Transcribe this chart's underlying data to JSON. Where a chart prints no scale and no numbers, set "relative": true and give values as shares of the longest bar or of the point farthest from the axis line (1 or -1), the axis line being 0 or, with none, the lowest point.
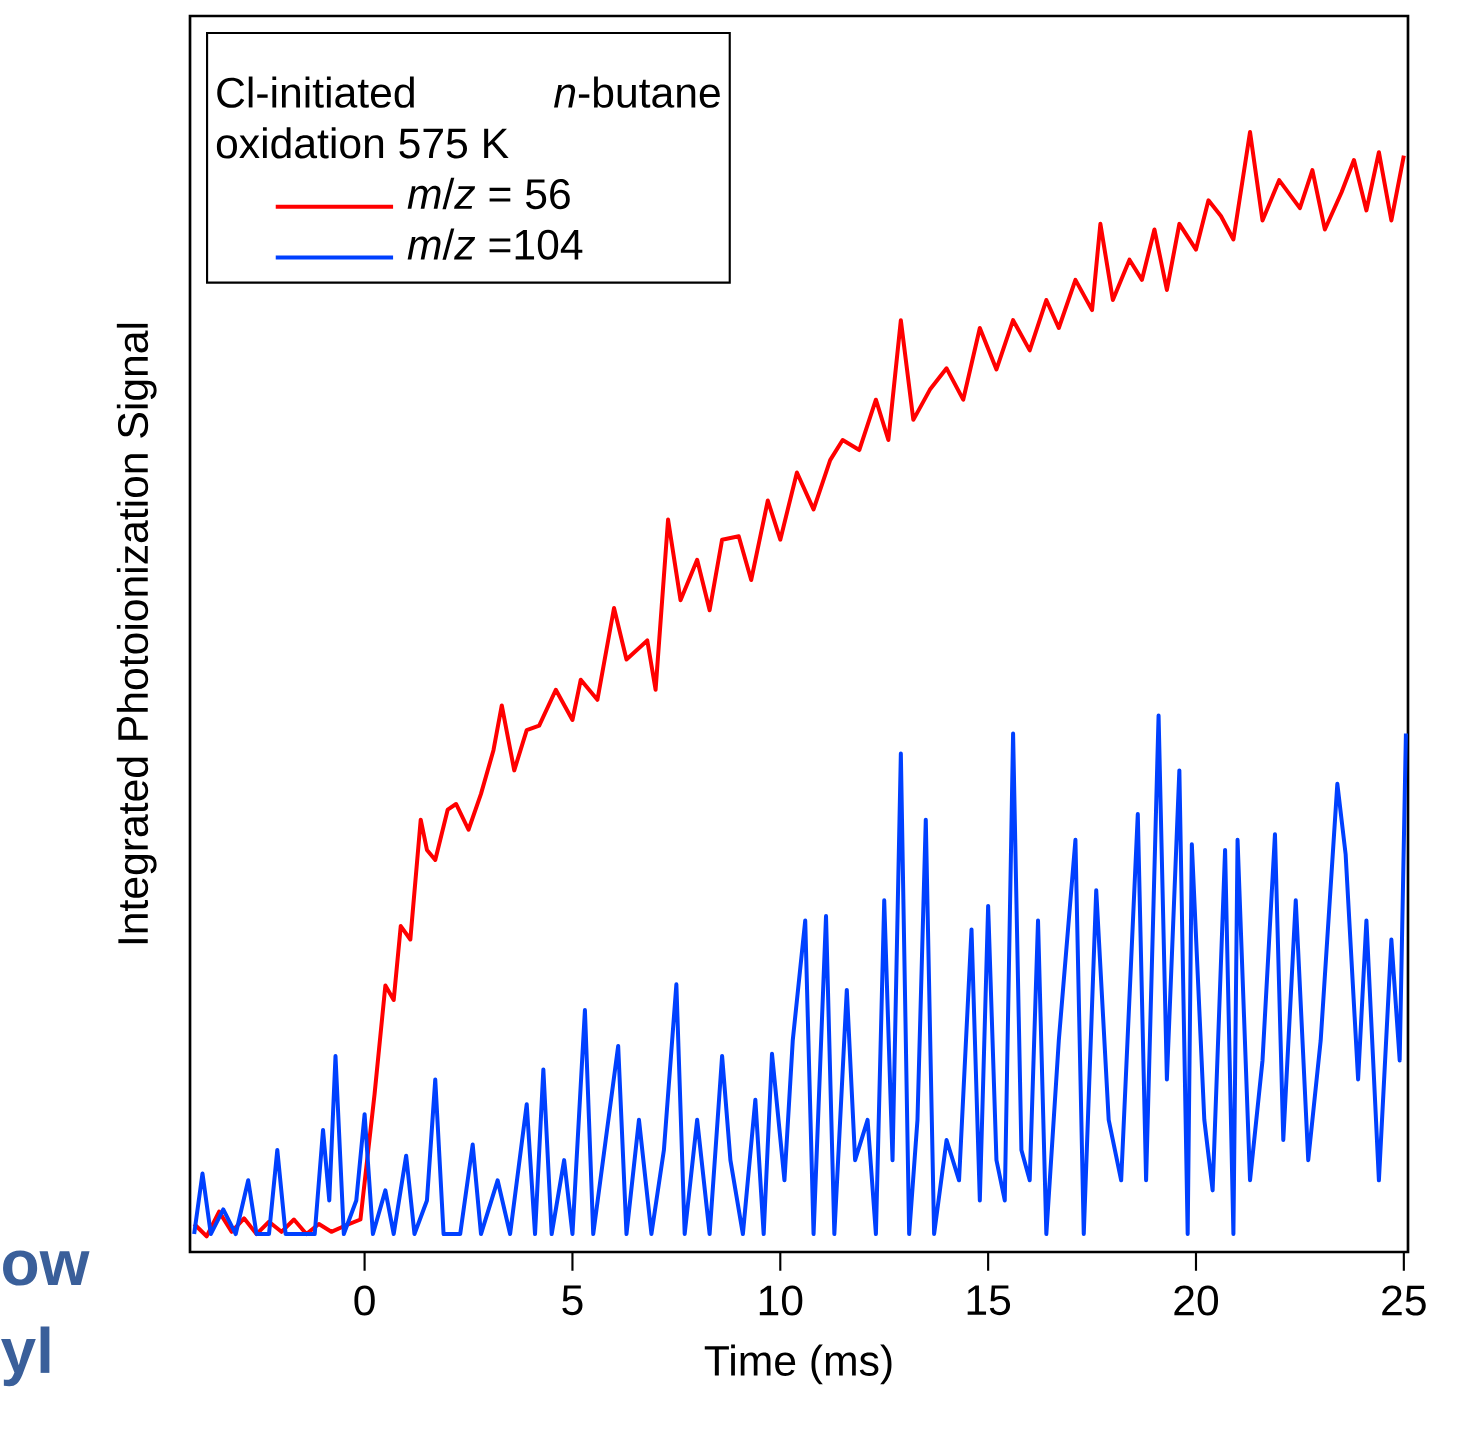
{
  "chart_data": {
    "type": "line",
    "relative": true,
    "xlabel": "Time (ms)",
    "ylabel": "Integrated Photoionization Signal",
    "xlim": [
      -4.2,
      25.1
    ],
    "xticks": [
      0,
      5,
      10,
      15,
      20,
      25
    ],
    "legend": "top left",
    "legend_title": "Cl-initiated *n*-butane oxidation 575 K",
    "grid": false,
    "marker": "none",
    "line_style": "solid",
    "annotations": [
      "ow",
      "yl"
    ],
    "series": [
      {
        "name": "*m*/*z* = 56",
        "color": "#ff0000",
        "x": [
          -4.1,
          -3.8,
          -3.5,
          -3.2,
          -2.9,
          -2.6,
          -2.3,
          -2.0,
          -1.7,
          -1.4,
          -1.1,
          -0.8,
          -0.5,
          -0.1,
          0.24,
          0.5,
          0.7,
          0.87,
          1.1,
          1.35,
          1.5,
          1.7,
          2.0,
          2.2,
          2.5,
          2.8,
          3.1,
          3.3,
          3.6,
          3.9,
          4.2,
          4.6,
          5.0,
          5.2,
          5.6,
          6.0,
          6.3,
          6.8,
          7.0,
          7.3,
          7.6,
          8.0,
          8.3,
          8.6,
          9.0,
          9.3,
          9.7,
          10.0,
          10.4,
          10.8,
          11.2,
          11.5,
          11.9,
          12.3,
          12.6,
          12.9,
          13.2,
          13.6,
          14.0,
          14.4,
          14.8,
          15.2,
          15.6,
          16.0,
          16.4,
          16.7,
          17.1,
          17.5,
          17.7,
          18.0,
          18.4,
          18.7,
          19.0,
          19.3,
          19.6,
          20.0,
          20.3,
          20.6,
          20.9,
          21.3,
          21.6,
          22.0,
          22.5,
          22.8,
          23.1,
          23.5,
          23.8,
          24.1,
          24.4,
          24.7,
          25.0
        ],
        "values": [
          0.025,
          0.014,
          0.036,
          0.018,
          0.03,
          0.016,
          0.027,
          0.018,
          0.029,
          0.016,
          0.025,
          0.018,
          0.023,
          0.029,
          0.141,
          0.238,
          0.225,
          0.291,
          0.279,
          0.386,
          0.359,
          0.35,
          0.395,
          0.4,
          0.377,
          0.409,
          0.448,
          0.488,
          0.43,
          0.466,
          0.47,
          0.502,
          0.475,
          0.511,
          0.493,
          0.575,
          0.529,
          0.546,
          0.502,
          0.654,
          0.582,
          0.618,
          0.573,
          0.636,
          0.639,
          0.6,
          0.671,
          0.636,
          0.696,
          0.663,
          0.707,
          0.725,
          0.716,
          0.761,
          0.725,
          0.832,
          0.743,
          0.77,
          0.789,
          0.761,
          0.825,
          0.788,
          0.832,
          0.805,
          0.85,
          0.825,
          0.868,
          0.841,
          0.918,
          0.85,
          0.886,
          0.868,
          0.913,
          0.859,
          0.918,
          0.895,
          0.939,
          0.925,
          0.904,
          1.0,
          0.921,
          0.957,
          0.932,
          0.966,
          0.913,
          0.946,
          0.975,
          0.93,
          0.982,
          0.921,
          0.979
        ]
      },
      {
        "name": "*m*/*z* =104",
        "color": "#0040ff",
        "x": [
          -4.1,
          -3.9,
          -3.7,
          -3.4,
          -3.1,
          -2.8,
          -2.6,
          -2.3,
          -2.1,
          -1.9,
          -1.5,
          -1.2,
          -1.0,
          -0.85,
          -0.7,
          -0.5,
          -0.2,
          0.0,
          0.2,
          0.5,
          0.7,
          1.0,
          1.2,
          1.5,
          1.7,
          1.9,
          2.3,
          2.6,
          2.8,
          3.2,
          3.5,
          3.9,
          4.1,
          4.3,
          4.5,
          4.8,
          5.0,
          5.3,
          5.5,
          5.8,
          6.1,
          6.3,
          6.6,
          6.9,
          7.2,
          7.5,
          7.7,
          8.0,
          8.3,
          8.6,
          8.8,
          9.1,
          9.4,
          9.6,
          9.8,
          10.1,
          10.3,
          10.6,
          10.8,
          11.1,
          11.3,
          11.6,
          11.8,
          12.1,
          12.3,
          12.5,
          12.7,
          12.9,
          13.1,
          13.3,
          13.5,
          13.7,
          14.0,
          14.3,
          14.6,
          14.8,
          15.0,
          15.2,
          15.4,
          15.6,
          15.8,
          16.0,
          16.2,
          16.4,
          16.7,
          17.1,
          17.3,
          17.6,
          17.9,
          18.2,
          18.6,
          18.8,
          19.1,
          19.3,
          19.6,
          19.8,
          19.9,
          20.2,
          20.4,
          20.7,
          20.9,
          21.0,
          21.3,
          21.6,
          21.9,
          22.1,
          22.4,
          22.7,
          23.0,
          23.4,
          23.6,
          23.9,
          24.1,
          24.4,
          24.7,
          24.9,
          25.05
        ],
        "values": [
          0.016,
          0.07,
          0.016,
          0.038,
          0.016,
          0.064,
          0.016,
          0.016,
          0.091,
          0.016,
          0.016,
          0.016,
          0.109,
          0.046,
          0.175,
          0.016,
          0.046,
          0.123,
          0.016,
          0.055,
          0.016,
          0.086,
          0.016,
          0.046,
          0.154,
          0.016,
          0.016,
          0.096,
          0.016,
          0.064,
          0.016,
          0.132,
          0.016,
          0.163,
          0.016,
          0.082,
          0.016,
          0.216,
          0.016,
          0.1,
          0.184,
          0.016,
          0.118,
          0.016,
          0.091,
          0.239,
          0.016,
          0.118,
          0.016,
          0.175,
          0.082,
          0.016,
          0.136,
          0.016,
          0.177,
          0.064,
          0.189,
          0.296,
          0.016,
          0.3,
          0.016,
          0.234,
          0.082,
          0.118,
          0.016,
          0.314,
          0.082,
          0.445,
          0.016,
          0.118,
          0.386,
          0.016,
          0.1,
          0.064,
          0.288,
          0.046,
          0.309,
          0.082,
          0.046,
          0.463,
          0.091,
          0.064,
          0.296,
          0.016,
          0.189,
          0.368,
          0.016,
          0.323,
          0.118,
          0.064,
          0.391,
          0.064,
          0.479,
          0.154,
          0.43,
          0.016,
          0.364,
          0.118,
          0.055,
          0.359,
          0.016,
          0.368,
          0.064,
          0.171,
          0.373,
          0.1,
          0.314,
          0.082,
          0.189,
          0.418,
          0.355,
          0.154,
          0.296,
          0.064,
          0.279,
          0.171,
          0.463
        ]
      }
    ]
  }
}
